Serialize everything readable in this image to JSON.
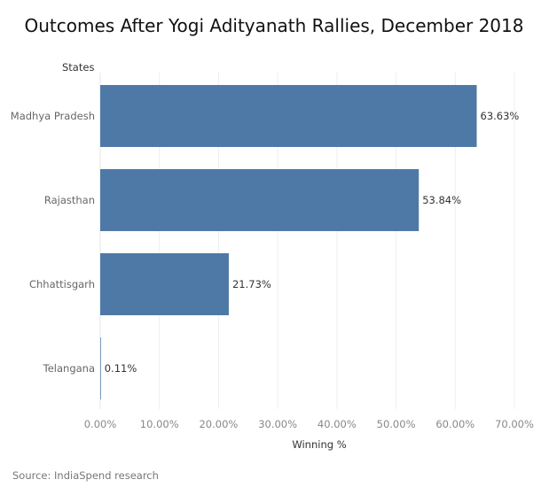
{
  "chart_data": {
    "type": "bar",
    "orientation": "horizontal",
    "title": "Outcomes After Yogi Adityanath Rallies, December 2018",
    "row_header": "States",
    "xlabel": "Winning %",
    "categories": [
      "Madhya Pradesh",
      "Rajasthan",
      "Chhattisgarh",
      "Telangana"
    ],
    "values": [
      63.63,
      53.84,
      21.73,
      0.11
    ],
    "value_labels": [
      "63.63%",
      "53.84%",
      "21.73%",
      "0.11%"
    ],
    "xlim": [
      0,
      70
    ],
    "ticks": [
      0,
      10,
      20,
      30,
      40,
      50,
      60,
      70
    ],
    "tick_labels": [
      "0.00%",
      "10.00%",
      "20.00%",
      "30.00%",
      "40.00%",
      "50.00%",
      "60.00%",
      "70.00%"
    ],
    "bar_color": "#4e79a7",
    "grid": true,
    "source": "Source: IndiaSpend research"
  }
}
